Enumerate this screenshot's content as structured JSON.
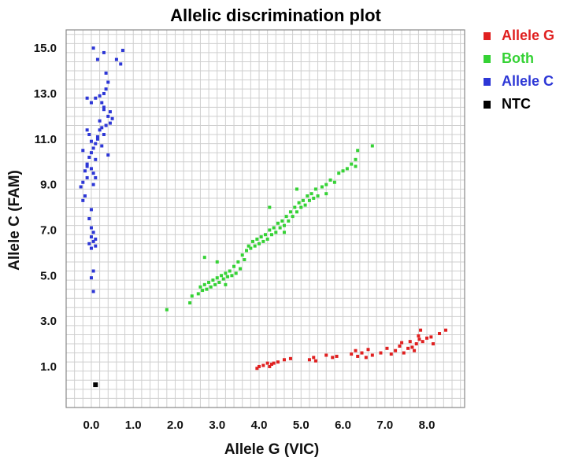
{
  "chart_data": {
    "type": "scatter",
    "title": "Allelic discrimination plot",
    "xlabel": "Allele G  (VIC)",
    "ylabel": "Allele C  (FAM)",
    "xlim": [
      -0.6,
      8.9
    ],
    "ylim": [
      -0.8,
      15.8
    ],
    "x_ticks": [
      0.0,
      1.0,
      2.0,
      3.0,
      4.0,
      5.0,
      6.0,
      7.0,
      8.0
    ],
    "x_tick_labels": [
      "0.0",
      "1.0",
      "2.0",
      "3.0",
      "4.0",
      "5.0",
      "6.0",
      "7.0",
      "8.0"
    ],
    "y_ticks": [
      1.0,
      3.0,
      5.0,
      7.0,
      9.0,
      11.0,
      13.0,
      15.0
    ],
    "y_tick_labels": [
      "1.0",
      "3.0",
      "5.0",
      "7.0",
      "9.0",
      "11.0",
      "13.0",
      "15.0"
    ],
    "grid": true,
    "legend_position": "right-top",
    "series": [
      {
        "name": "Allele G",
        "color": "#e02020",
        "points": [
          [
            3.95,
            0.92
          ],
          [
            4.0,
            1.0
          ],
          [
            4.1,
            1.05
          ],
          [
            4.2,
            1.15
          ],
          [
            4.25,
            1.0
          ],
          [
            4.3,
            1.1
          ],
          [
            4.35,
            1.15
          ],
          [
            4.45,
            1.2
          ],
          [
            4.6,
            1.3
          ],
          [
            4.75,
            1.35
          ],
          [
            5.2,
            1.3
          ],
          [
            5.3,
            1.4
          ],
          [
            5.35,
            1.25
          ],
          [
            5.6,
            1.5
          ],
          [
            5.75,
            1.4
          ],
          [
            5.85,
            1.45
          ],
          [
            6.2,
            1.55
          ],
          [
            6.3,
            1.7
          ],
          [
            6.35,
            1.45
          ],
          [
            6.45,
            1.6
          ],
          [
            6.55,
            1.4
          ],
          [
            6.6,
            1.75
          ],
          [
            6.7,
            1.5
          ],
          [
            6.9,
            1.6
          ],
          [
            7.05,
            1.8
          ],
          [
            7.15,
            1.55
          ],
          [
            7.25,
            1.7
          ],
          [
            7.35,
            1.9
          ],
          [
            7.4,
            2.05
          ],
          [
            7.45,
            1.6
          ],
          [
            7.55,
            1.8
          ],
          [
            7.6,
            2.1
          ],
          [
            7.65,
            1.85
          ],
          [
            7.7,
            1.7
          ],
          [
            7.75,
            2.0
          ],
          [
            7.8,
            2.35
          ],
          [
            7.82,
            2.2
          ],
          [
            7.85,
            2.6
          ],
          [
            7.9,
            2.1
          ],
          [
            8.0,
            2.25
          ],
          [
            8.1,
            2.3
          ],
          [
            8.15,
            2.0
          ],
          [
            8.3,
            2.45
          ],
          [
            8.45,
            2.6
          ]
        ]
      },
      {
        "name": "Both",
        "color": "#35d235",
        "points": [
          [
            1.8,
            3.5
          ],
          [
            2.35,
            3.8
          ],
          [
            2.4,
            4.1
          ],
          [
            2.55,
            4.2
          ],
          [
            2.6,
            4.5
          ],
          [
            2.65,
            4.35
          ],
          [
            2.7,
            4.6
          ],
          [
            2.75,
            4.4
          ],
          [
            2.8,
            4.7
          ],
          [
            2.85,
            4.5
          ],
          [
            2.9,
            4.8
          ],
          [
            2.95,
            4.6
          ],
          [
            3.0,
            4.9
          ],
          [
            3.05,
            4.7
          ],
          [
            3.1,
            5.0
          ],
          [
            3.15,
            4.85
          ],
          [
            3.2,
            5.1
          ],
          [
            3.25,
            4.95
          ],
          [
            3.3,
            5.2
          ],
          [
            3.35,
            5.0
          ],
          [
            3.4,
            5.4
          ],
          [
            3.45,
            5.1
          ],
          [
            3.5,
            5.6
          ],
          [
            3.55,
            5.3
          ],
          [
            3.6,
            5.9
          ],
          [
            3.65,
            5.7
          ],
          [
            3.7,
            6.1
          ],
          [
            3.75,
            6.3
          ],
          [
            3.8,
            6.2
          ],
          [
            3.85,
            6.5
          ],
          [
            3.9,
            6.3
          ],
          [
            3.95,
            6.6
          ],
          [
            4.0,
            6.4
          ],
          [
            4.05,
            6.7
          ],
          [
            4.1,
            6.5
          ],
          [
            4.15,
            6.8
          ],
          [
            4.2,
            6.6
          ],
          [
            4.25,
            7.0
          ],
          [
            4.3,
            6.8
          ],
          [
            4.35,
            7.1
          ],
          [
            4.4,
            6.9
          ],
          [
            4.45,
            7.3
          ],
          [
            4.5,
            7.1
          ],
          [
            4.55,
            7.4
          ],
          [
            4.6,
            7.2
          ],
          [
            4.65,
            7.6
          ],
          [
            4.7,
            7.4
          ],
          [
            4.75,
            7.8
          ],
          [
            4.8,
            7.6
          ],
          [
            4.85,
            8.0
          ],
          [
            4.9,
            7.8
          ],
          [
            4.95,
            8.2
          ],
          [
            5.0,
            8.0
          ],
          [
            5.05,
            8.3
          ],
          [
            5.1,
            8.1
          ],
          [
            5.15,
            8.5
          ],
          [
            5.2,
            8.3
          ],
          [
            5.25,
            8.6
          ],
          [
            5.3,
            8.4
          ],
          [
            5.35,
            8.8
          ],
          [
            5.4,
            8.5
          ],
          [
            5.5,
            8.9
          ],
          [
            5.6,
            9.0
          ],
          [
            5.7,
            9.2
          ],
          [
            5.8,
            9.1
          ],
          [
            5.9,
            9.5
          ],
          [
            6.0,
            9.6
          ],
          [
            6.1,
            9.7
          ],
          [
            6.2,
            9.9
          ],
          [
            6.3,
            10.1
          ],
          [
            6.35,
            10.5
          ],
          [
            6.7,
            10.7
          ],
          [
            2.7,
            5.8
          ],
          [
            3.0,
            5.6
          ],
          [
            4.25,
            8.0
          ],
          [
            4.9,
            8.8
          ],
          [
            3.2,
            4.6
          ],
          [
            4.6,
            6.9
          ],
          [
            5.6,
            8.6
          ],
          [
            6.3,
            9.8
          ]
        ]
      },
      {
        "name": "Allele C",
        "color": "#2d37d6",
        "points": [
          [
            0.05,
            15.0
          ],
          [
            0.15,
            14.5
          ],
          [
            0.3,
            14.8
          ],
          [
            0.6,
            14.5
          ],
          [
            0.7,
            14.3
          ],
          [
            0.75,
            14.9
          ],
          [
            0.35,
            13.9
          ],
          [
            0.4,
            13.5
          ],
          [
            0.35,
            13.2
          ],
          [
            0.3,
            13.0
          ],
          [
            0.25,
            12.6
          ],
          [
            0.3,
            12.3
          ],
          [
            0.4,
            12.0
          ],
          [
            0.2,
            11.8
          ],
          [
            0.25,
            11.5
          ],
          [
            0.3,
            11.2
          ],
          [
            0.15,
            11.0
          ],
          [
            0.1,
            10.8
          ],
          [
            0.05,
            10.6
          ],
          [
            0.0,
            10.9
          ],
          [
            -0.05,
            11.2
          ],
          [
            -0.1,
            11.4
          ],
          [
            0.0,
            10.4
          ],
          [
            -0.05,
            10.2
          ],
          [
            -0.1,
            9.9
          ],
          [
            -0.15,
            9.6
          ],
          [
            -0.1,
            9.3
          ],
          [
            -0.2,
            9.1
          ],
          [
            -0.25,
            8.9
          ],
          [
            -0.15,
            8.5
          ],
          [
            -0.2,
            8.3
          ],
          [
            0.0,
            7.9
          ],
          [
            -0.05,
            7.5
          ],
          [
            0.0,
            7.1
          ],
          [
            0.05,
            6.9
          ],
          [
            0.0,
            6.7
          ],
          [
            0.05,
            6.5
          ],
          [
            -0.05,
            6.4
          ],
          [
            0.0,
            6.2
          ],
          [
            0.05,
            5.2
          ],
          [
            0.0,
            4.9
          ],
          [
            0.05,
            4.3
          ],
          [
            0.1,
            12.8
          ],
          [
            0.0,
            12.6
          ],
          [
            -0.1,
            12.8
          ],
          [
            0.2,
            12.9
          ],
          [
            0.45,
            12.2
          ],
          [
            0.5,
            11.9
          ],
          [
            0.45,
            11.7
          ],
          [
            0.35,
            11.6
          ],
          [
            0.2,
            11.4
          ],
          [
            0.4,
            10.3
          ],
          [
            0.1,
            10.1
          ],
          [
            0.05,
            9.5
          ],
          [
            -0.1,
            9.8
          ],
          [
            0.0,
            9.7
          ],
          [
            0.1,
            9.3
          ],
          [
            0.05,
            9.0
          ],
          [
            0.1,
            6.6
          ],
          [
            0.1,
            6.3
          ],
          [
            0.15,
            11.1
          ],
          [
            0.25,
            10.7
          ],
          [
            -0.2,
            10.5
          ],
          [
            0.3,
            12.4
          ]
        ]
      },
      {
        "name": "NTC",
        "color": "#000000",
        "points": [
          [
            0.1,
            0.2
          ]
        ]
      }
    ]
  }
}
